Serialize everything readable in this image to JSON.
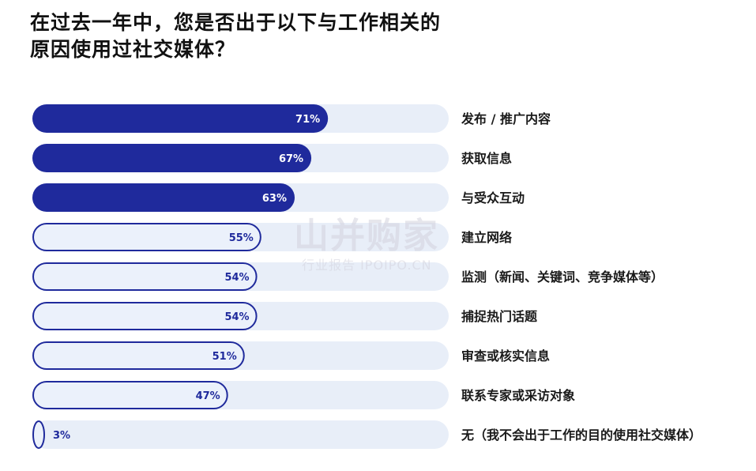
{
  "title_line1": "在过去一年中，您是否出于以下与工作相关的",
  "title_line2": "原因使用过社交媒体？",
  "watermark": {
    "main": "山并购家",
    "sub": "行业报告 IPOIPO.CN"
  },
  "colors": {
    "filled": "#1f2a9c",
    "outline_fill": "#ebf1fb",
    "outline_stroke": "#1f2a9c",
    "track": "#e8eef8",
    "label_text": "#1a1a1a"
  },
  "chart_data": {
    "type": "bar",
    "orientation": "horizontal",
    "categories": [
      "发布 / 推广内容",
      "获取信息",
      "与受众互动",
      "建立网络",
      "监测（新闻、关键词、竞争媒体等）",
      "捕捉热门话题",
      "审查或核实信息",
      "联系专家或采访对象",
      "无（我不会出于工作的目的使用社交媒体）"
    ],
    "values": [
      71,
      67,
      63,
      55,
      54,
      54,
      51,
      47,
      3
    ],
    "value_labels": [
      "71%",
      "67%",
      "63%",
      "55%",
      "54%",
      "54%",
      "51%",
      "47%",
      "3%"
    ],
    "style": [
      "filled",
      "filled",
      "filled",
      "outline",
      "outline",
      "outline",
      "outline",
      "outline",
      "outline"
    ],
    "xlim": [
      0,
      100
    ]
  }
}
